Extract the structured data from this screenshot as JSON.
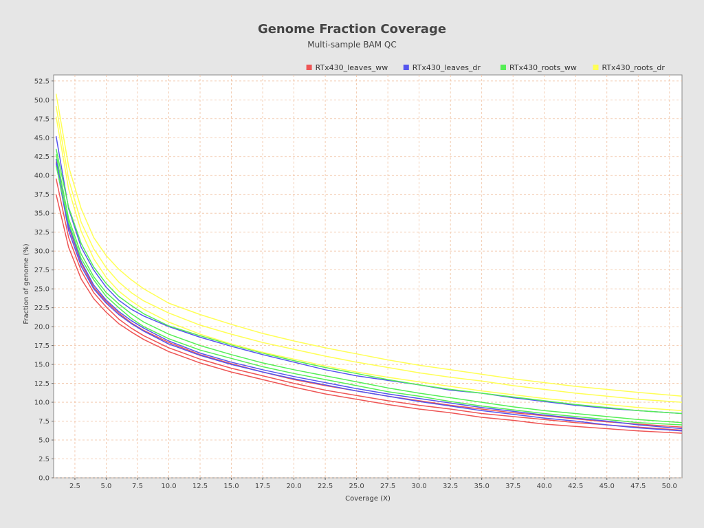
{
  "chart_data": {
    "type": "line",
    "title": "Genome Fraction Coverage",
    "subtitle": "Multi-sample BAM QC",
    "xlabel": "Coverage (X)",
    "ylabel": "Fraction of genome (%)",
    "xlim": [
      0.8,
      51
    ],
    "ylim": [
      0,
      53.3
    ],
    "x_ticks": [
      "2.5",
      "5.0",
      "7.5",
      "10.0",
      "12.5",
      "15.0",
      "17.5",
      "20.0",
      "22.5",
      "25.0",
      "27.5",
      "30.0",
      "32.5",
      "35.0",
      "37.5",
      "40.0",
      "42.5",
      "45.0",
      "47.5",
      "50.0"
    ],
    "y_ticks": [
      "0.0",
      "2.5",
      "5.0",
      "7.5",
      "10.0",
      "12.5",
      "15.0",
      "17.5",
      "20.0",
      "22.5",
      "25.0",
      "27.5",
      "30.0",
      "32.5",
      "35.0",
      "37.5",
      "40.0",
      "42.5",
      "45.0",
      "47.5",
      "50.0",
      "52.5"
    ],
    "grid": true,
    "legend_position": "top-right",
    "legend": [
      {
        "name": "RTx430_leaves_ww",
        "color": "#ee5555"
      },
      {
        "name": "RTx430_leaves_dr",
        "color": "#5555ee"
      },
      {
        "name": "RTx430_roots_ww",
        "color": "#55ee55"
      },
      {
        "name": "RTx430_roots_dr",
        "color": "#ffff55"
      }
    ],
    "x": [
      1,
      2,
      3,
      4,
      5,
      6,
      7,
      8,
      10,
      12.5,
      15,
      17.5,
      20,
      22.5,
      25,
      27.5,
      30,
      32.5,
      35,
      37.5,
      40,
      42.5,
      45,
      47.5,
      51
    ],
    "series": [
      {
        "group": "RTx430_leaves_ww",
        "color": "#ee5555",
        "values": [
          37.5,
          30.5,
          26.3,
          23.7,
          21.9,
          20.4,
          19.3,
          18.3,
          16.7,
          15.2,
          14.0,
          13.0,
          12.0,
          11.1,
          10.4,
          9.7,
          9.1,
          8.6,
          8.0,
          7.6,
          7.1,
          6.8,
          6.5,
          6.2,
          5.9
        ]
      },
      {
        "group": "RTx430_leaves_ww",
        "color": "#ee5555",
        "values": [
          39.6,
          31.8,
          27.4,
          24.5,
          22.6,
          21.0,
          19.8,
          18.8,
          17.2,
          15.7,
          14.5,
          13.5,
          12.5,
          11.6,
          10.9,
          10.2,
          9.6,
          9.1,
          8.5,
          8.1,
          7.7,
          7.3,
          7.0,
          6.7,
          6.3
        ]
      },
      {
        "group": "RTx430_leaves_ww",
        "color": "#ee5555",
        "values": [
          41.8,
          33.2,
          28.4,
          25.2,
          23.3,
          21.8,
          20.5,
          19.5,
          17.9,
          16.3,
          15.1,
          14.0,
          13.0,
          12.2,
          11.5,
          10.8,
          10.2,
          9.6,
          9.1,
          8.6,
          8.2,
          7.8,
          7.4,
          7.1,
          6.7
        ]
      },
      {
        "group": "RTx430_leaves_dr",
        "color": "#5555ee",
        "values": [
          41.6,
          32.7,
          28.0,
          25.0,
          23.1,
          21.6,
          20.4,
          19.4,
          17.7,
          16.2,
          15.0,
          14.0,
          13.1,
          12.3,
          11.5,
          10.8,
          10.1,
          9.5,
          8.9,
          8.4,
          7.9,
          7.5,
          7.0,
          6.6,
          6.2
        ]
      },
      {
        "group": "RTx430_leaves_dr",
        "color": "#5555ee",
        "values": [
          42.2,
          33.4,
          28.6,
          25.5,
          23.5,
          22.0,
          20.8,
          19.8,
          18.1,
          16.5,
          15.3,
          14.3,
          13.4,
          12.6,
          11.8,
          11.1,
          10.5,
          9.9,
          9.3,
          8.8,
          8.3,
          7.9,
          7.5,
          7.0,
          6.5
        ]
      },
      {
        "group": "RTx430_leaves_dr",
        "color": "#5555ee",
        "values": [
          45.2,
          35.6,
          30.5,
          27.5,
          25.2,
          23.5,
          22.3,
          21.4,
          20.0,
          18.6,
          17.4,
          16.3,
          15.3,
          14.3,
          13.5,
          12.9,
          12.3,
          11.6,
          11.2,
          10.6,
          10.1,
          9.6,
          9.2,
          8.9,
          8.5
        ]
      },
      {
        "group": "RTx430_roots_ww",
        "color": "#55ee55",
        "values": [
          41.3,
          33.8,
          29.0,
          26.2,
          24.0,
          22.5,
          21.1,
          20.0,
          18.4,
          16.9,
          15.8,
          14.7,
          13.8,
          13.0,
          12.2,
          11.4,
          10.8,
          10.1,
          9.5,
          9.0,
          8.5,
          8.1,
          7.7,
          7.3,
          7.0
        ]
      },
      {
        "group": "RTx430_roots_ww",
        "color": "#55ee55",
        "values": [
          42.8,
          34.3,
          29.6,
          26.6,
          24.5,
          23.0,
          21.7,
          20.6,
          19.0,
          17.5,
          16.3,
          15.2,
          14.3,
          13.5,
          12.7,
          11.9,
          11.2,
          10.6,
          10.0,
          9.4,
          8.9,
          8.5,
          8.1,
          7.7,
          7.3
        ]
      },
      {
        "group": "RTx430_roots_ww",
        "color": "#55ee55",
        "values": [
          43.5,
          35.8,
          31.0,
          27.9,
          25.7,
          24.0,
          22.8,
          21.7,
          20.1,
          18.8,
          17.6,
          16.5,
          15.5,
          14.6,
          13.8,
          13.0,
          12.3,
          11.7,
          11.2,
          10.7,
          10.2,
          9.7,
          9.3,
          8.9,
          8.5
        ]
      },
      {
        "group": "RTx430_roots_dr",
        "color": "#ffff55",
        "values": [
          47.8,
          38.2,
          32.6,
          29.0,
          26.5,
          24.7,
          23.4,
          22.3,
          20.6,
          19.0,
          17.7,
          16.6,
          15.7,
          14.8,
          14.0,
          13.3,
          12.7,
          12.1,
          11.5,
          11.0,
          10.5,
          10.1,
          9.7,
          9.3,
          8.9
        ]
      },
      {
        "group": "RTx430_roots_dr",
        "color": "#ffff55",
        "values": [
          49.2,
          39.5,
          33.8,
          30.3,
          27.8,
          25.9,
          24.5,
          23.4,
          21.8,
          20.2,
          19.0,
          17.9,
          17.0,
          16.1,
          15.3,
          14.6,
          13.9,
          13.3,
          12.8,
          12.2,
          11.7,
          11.2,
          10.8,
          10.4,
          10.0
        ]
      },
      {
        "group": "RTx430_roots_dr",
        "color": "#ffff55",
        "values": [
          50.8,
          41.2,
          35.6,
          31.8,
          29.4,
          27.6,
          26.2,
          25.0,
          23.1,
          21.6,
          20.3,
          19.1,
          18.1,
          17.2,
          16.4,
          15.6,
          14.9,
          14.3,
          13.7,
          13.1,
          12.6,
          12.1,
          11.7,
          11.3,
          10.8
        ]
      }
    ]
  }
}
